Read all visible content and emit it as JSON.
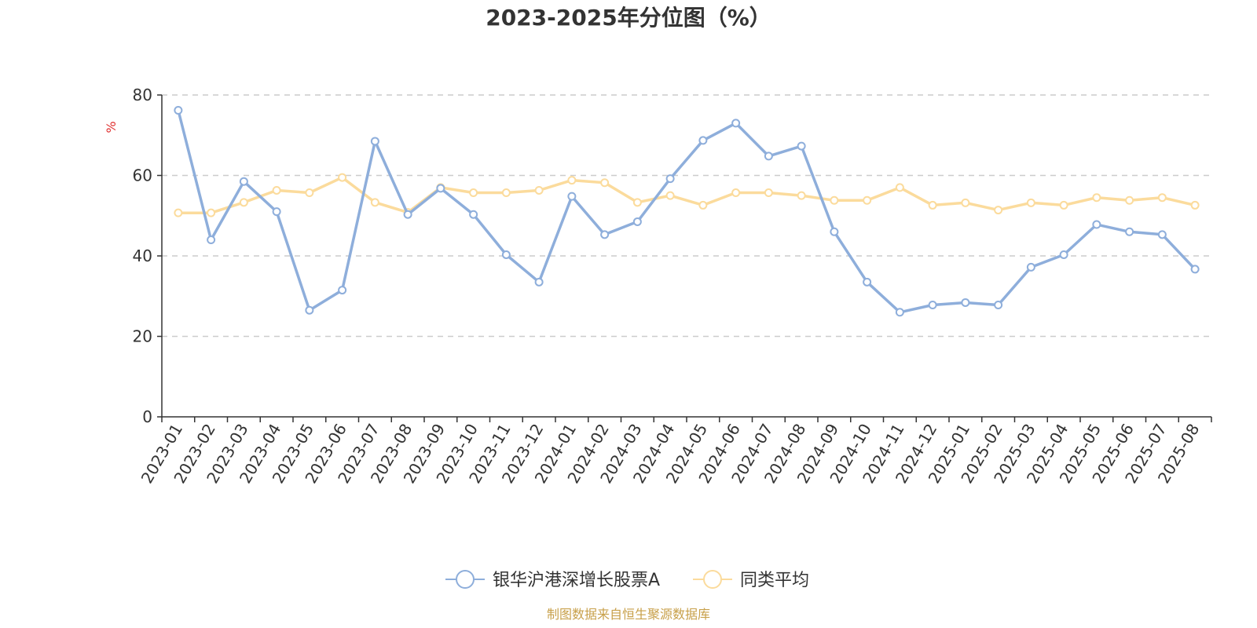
{
  "chart_data": {
    "type": "line",
    "title": "2023-2025年分位图（%）",
    "ylabel": "%",
    "ylim": [
      0,
      80
    ],
    "yticks": [
      0,
      20,
      40,
      60,
      80
    ],
    "grid": "horizontal-dashed",
    "legend_position": "bottom-center",
    "categories": [
      "2023-01",
      "2023-02",
      "2023-03",
      "2023-04",
      "2023-05",
      "2023-06",
      "2023-07",
      "2023-08",
      "2023-09",
      "2023-10",
      "2023-11",
      "2023-12",
      "2024-01",
      "2024-02",
      "2024-03",
      "2024-04",
      "2024-05",
      "2024-06",
      "2024-07",
      "2024-08",
      "2024-09",
      "2024-10",
      "2024-11",
      "2024-12",
      "2025-01",
      "2025-02",
      "2025-03",
      "2025-04",
      "2025-05",
      "2025-06",
      "2025-07",
      "2025-08"
    ],
    "series": [
      {
        "name": "银华沪港深增长股票A",
        "color": "#8eaedb",
        "values": [
          76.2,
          44.0,
          58.5,
          51.0,
          26.5,
          31.5,
          68.5,
          50.3,
          56.8,
          50.3,
          40.3,
          33.5,
          54.8,
          45.3,
          48.5,
          59.2,
          68.7,
          73.0,
          64.8,
          67.3,
          46.0,
          33.5,
          26.0,
          27.8,
          28.4,
          27.8,
          37.2,
          40.3,
          47.8,
          46.0,
          45.3,
          36.7
        ]
      },
      {
        "name": "同类平均",
        "color": "#fbdb9c",
        "values": [
          50.7,
          50.7,
          53.3,
          56.3,
          55.7,
          59.5,
          53.3,
          50.8,
          57.0,
          55.7,
          55.7,
          56.3,
          58.8,
          58.2,
          53.3,
          55.0,
          52.6,
          55.7,
          55.7,
          55.0,
          53.8,
          53.8,
          57.0,
          52.6,
          53.2,
          51.4,
          53.2,
          52.6,
          54.5,
          53.8,
          54.5,
          52.6
        ]
      }
    ]
  },
  "colors": {
    "axis": "#333333",
    "grid": "#cccccc",
    "unit_label": "#e03030",
    "source_text": "#c8a04a"
  },
  "source": "制图数据来自恒生聚源数据库"
}
